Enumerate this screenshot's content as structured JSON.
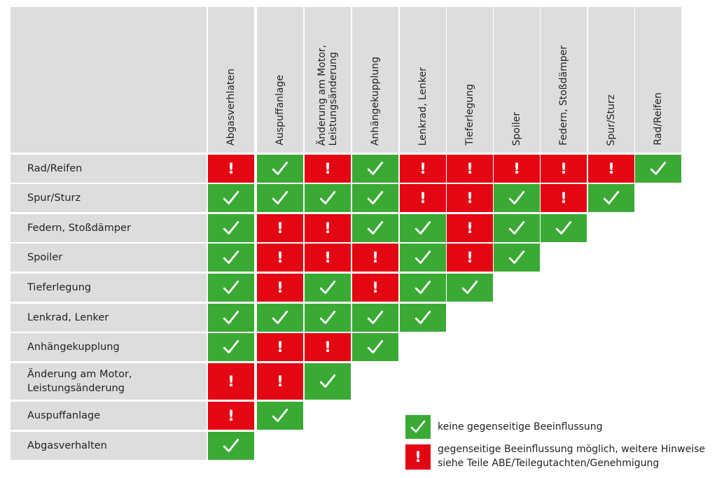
{
  "chart_data": {
    "type": "table",
    "columns": [
      "Abgasverhlaten",
      "Auspuffanlage",
      "Änderung am Motor,\nLeistungsänderung",
      "Anhängekupplung",
      "Lenkrad, Lenker",
      "Tieferlegung",
      "Spoiler",
      "Federn, Stoßdämper",
      "Spur/Sturz",
      "Rad/Reifen"
    ],
    "rows": [
      "Rad/Reifen",
      "Spur/Sturz",
      "Federn, Stoßdämper",
      "Spoiler",
      "Tieferlegung",
      "Lenkrad, Lenker",
      "Anhängekupplung",
      "Änderung am Motor,\nLeistungsänderung",
      "Auspuffanlage",
      "Abgasverhalten"
    ],
    "cells": [
      [
        "!",
        "ok",
        "!",
        "ok",
        "!",
        "!",
        "!",
        "!",
        "!",
        "ok"
      ],
      [
        "ok",
        "ok",
        "ok",
        "ok",
        "!",
        "!",
        "ok",
        "!",
        "ok"
      ],
      [
        "ok",
        "!",
        "!",
        "ok",
        "ok",
        "!",
        "ok",
        "ok"
      ],
      [
        "ok",
        "!",
        "!",
        "!",
        "ok",
        "!",
        "ok"
      ],
      [
        "ok",
        "!",
        "ok",
        "!",
        "ok",
        "ok"
      ],
      [
        "ok",
        "ok",
        "ok",
        "ok",
        "ok"
      ],
      [
        "ok",
        "!",
        "!",
        "ok"
      ],
      [
        "!",
        "!",
        "ok"
      ],
      [
        "!",
        "ok"
      ],
      [
        "ok"
      ]
    ],
    "legend": [
      {
        "symbol": "ok",
        "text": "keine gegenseitige Beeinflussung"
      },
      {
        "symbol": "!",
        "text": "gegenseitige Beeinflussung möglich, weitere Hinweise\nsiehe Teile ABE/Teilegutachten/Genehmigung"
      }
    ],
    "colors": {
      "ok": "#3aaa35",
      "warn": "#e30613",
      "header": "#dddddd",
      "text": "#222222"
    },
    "symbols": {
      "warn_glyph": "!",
      "ok_icon": "check-icon"
    }
  }
}
